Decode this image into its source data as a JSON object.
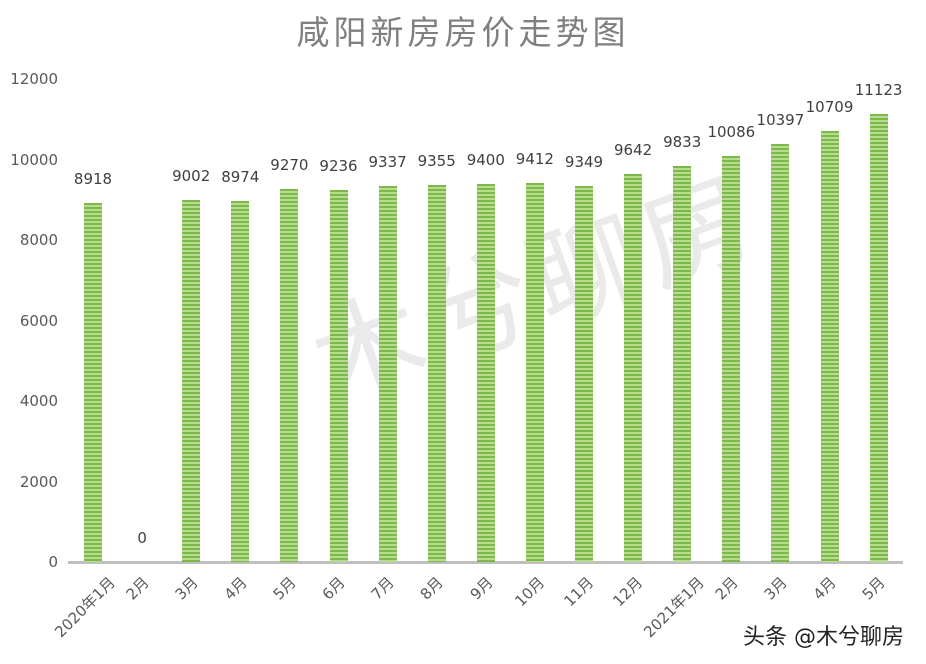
{
  "chart_data": {
    "type": "bar",
    "title": "咸阳新房房价走势图",
    "xlabel": "",
    "ylabel": "",
    "ylim": [
      0,
      12000
    ],
    "yticks": [
      0,
      2000,
      4000,
      6000,
      8000,
      10000,
      12000
    ],
    "grid": false,
    "legend": null,
    "categories": [
      "2020年1月",
      "2月",
      "3月",
      "4月",
      "5月",
      "6月",
      "7月",
      "8月",
      "9月",
      "10月",
      "11月",
      "12月",
      "2021年1月",
      "2月",
      "3月",
      "4月",
      "5月"
    ],
    "values": [
      8918,
      0,
      9002,
      8974,
      9270,
      9236,
      9337,
      9355,
      9400,
      9412,
      9349,
      9642,
      9833,
      10086,
      10397,
      10709,
      11123
    ],
    "bar_colors": {
      "stripe_dark": "#7db94a",
      "stripe_light": "#b8dc8f"
    }
  },
  "watermarks": {
    "center": "木兮聊房",
    "corner": "头条 @木兮聊房"
  }
}
